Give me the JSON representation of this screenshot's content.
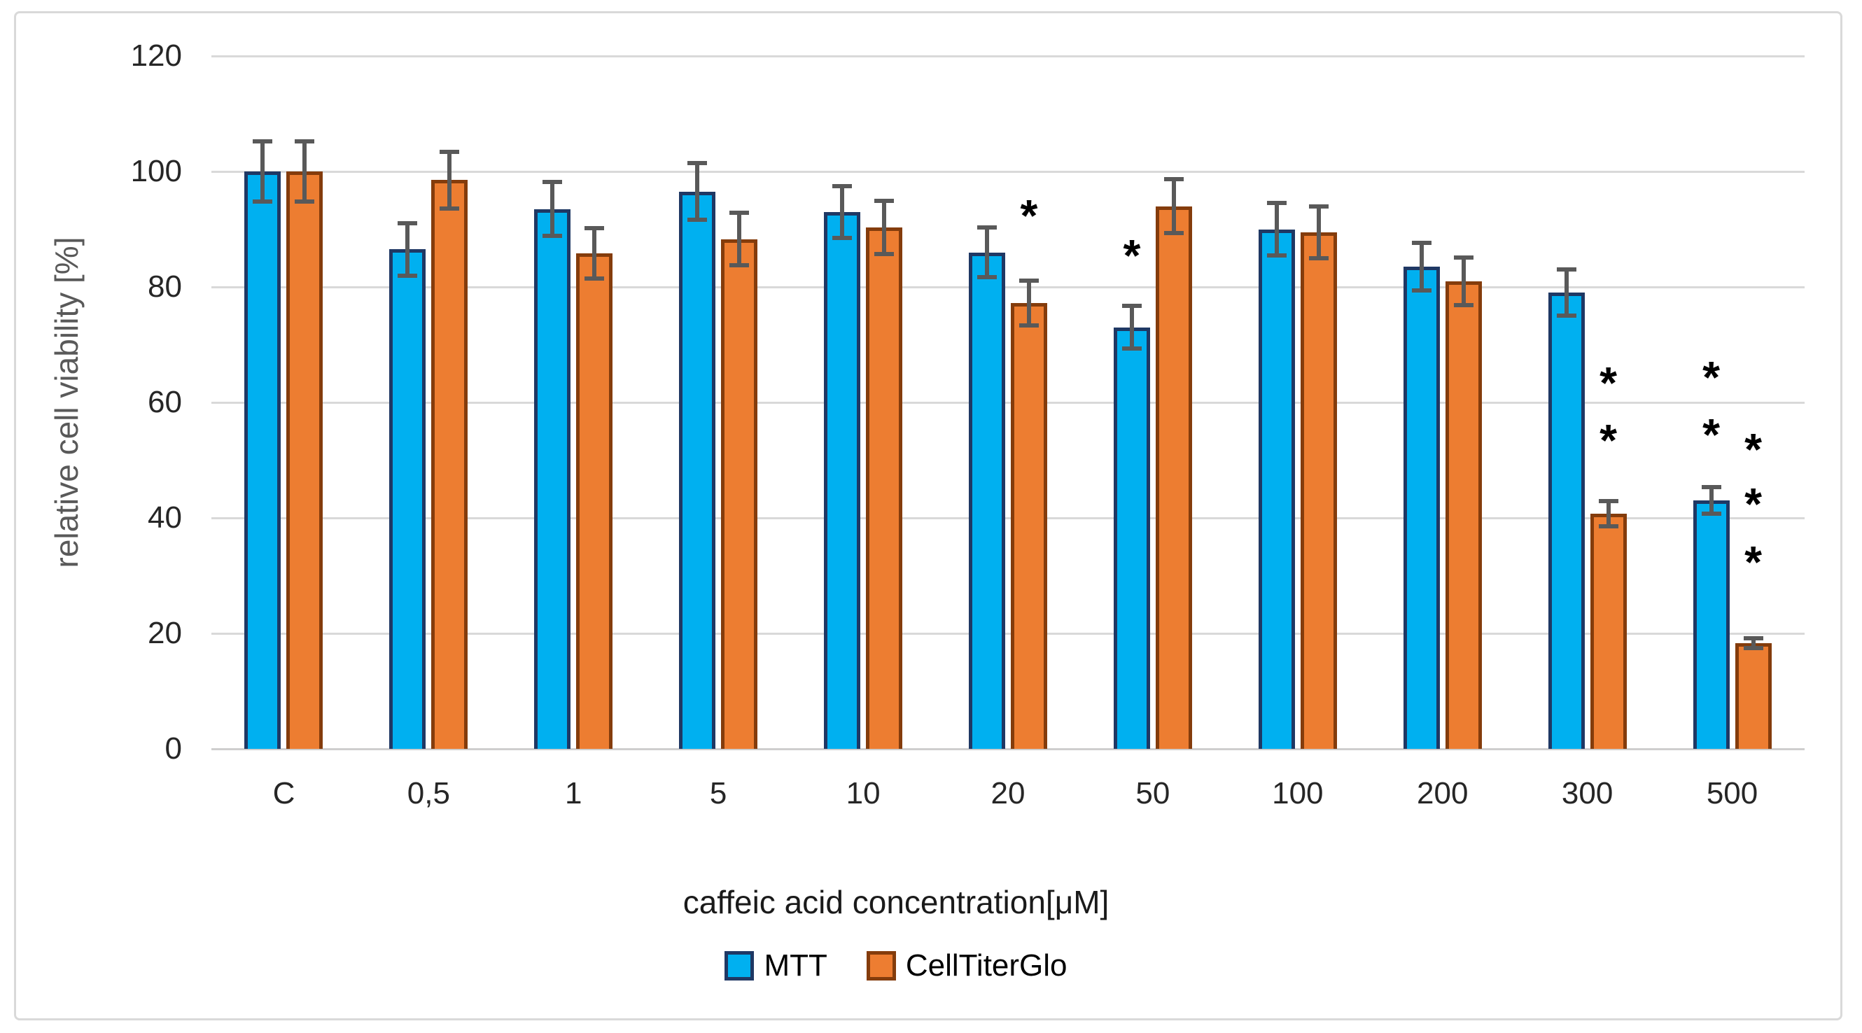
{
  "chart_data": {
    "type": "bar",
    "title": "",
    "xlabel": "caffeic acid concentration[μM]",
    "ylabel": "relative cell viability [%]",
    "ylim": [
      0,
      120
    ],
    "yticks": [
      0,
      20,
      40,
      60,
      80,
      100,
      120
    ],
    "grid": true,
    "legend_position": "bottom-center",
    "categories": [
      "C",
      "0,5",
      "1",
      "5",
      "10",
      "20",
      "50",
      "100",
      "200",
      "300",
      "500"
    ],
    "series": [
      {
        "name": "MTT",
        "fill": "#00B0F0",
        "border": "#1F3864",
        "values": [
          100,
          86.5,
          93.5,
          96.5,
          93,
          86,
          73,
          90,
          83.5,
          79,
          43
        ],
        "errors": [
          5.2,
          4.5,
          4.7,
          4.9,
          4.5,
          4.3,
          3.7,
          4.6,
          4.1,
          4.0,
          2.3
        ]
      },
      {
        "name": "CellTiterGlo",
        "fill": "#ED7D31",
        "border": "#843C0C",
        "values": [
          100,
          98.5,
          85.8,
          88.3,
          90.3,
          77.2,
          94,
          89.5,
          81,
          40.7,
          18.3
        ],
        "errors": [
          5.2,
          4.9,
          4.4,
          4.5,
          4.6,
          3.9,
          4.7,
          4.5,
          4.1,
          2.2,
          0.9
        ]
      }
    ],
    "significance_markers": [
      {
        "category": "20",
        "series": "CellTiterGlo",
        "symbol": "*",
        "values": [
          94
        ]
      },
      {
        "category": "50",
        "series": "MTT",
        "symbol": "*",
        "values": [
          87
        ]
      },
      {
        "category": "300",
        "series": "CellTiterGlo",
        "symbol": "*",
        "values": [
          65,
          55
        ]
      },
      {
        "category": "500",
        "series": "MTT",
        "symbol": "*",
        "values": [
          66,
          56
        ]
      },
      {
        "category": "500",
        "series": "CellTiterGlo",
        "symbol": "*",
        "values": [
          53.5,
          44,
          34
        ]
      }
    ]
  },
  "colors": {
    "background": "#FFFFFF",
    "chart_border": "#D9D9D9",
    "gridline": "#D9D9D9",
    "axis_line": "#CFCECE",
    "error_bar": "#595959",
    "tick_label": "#262626",
    "y_axis_title": "#595959",
    "x_axis_title": "#1A1A1A",
    "marker": "#000000"
  }
}
